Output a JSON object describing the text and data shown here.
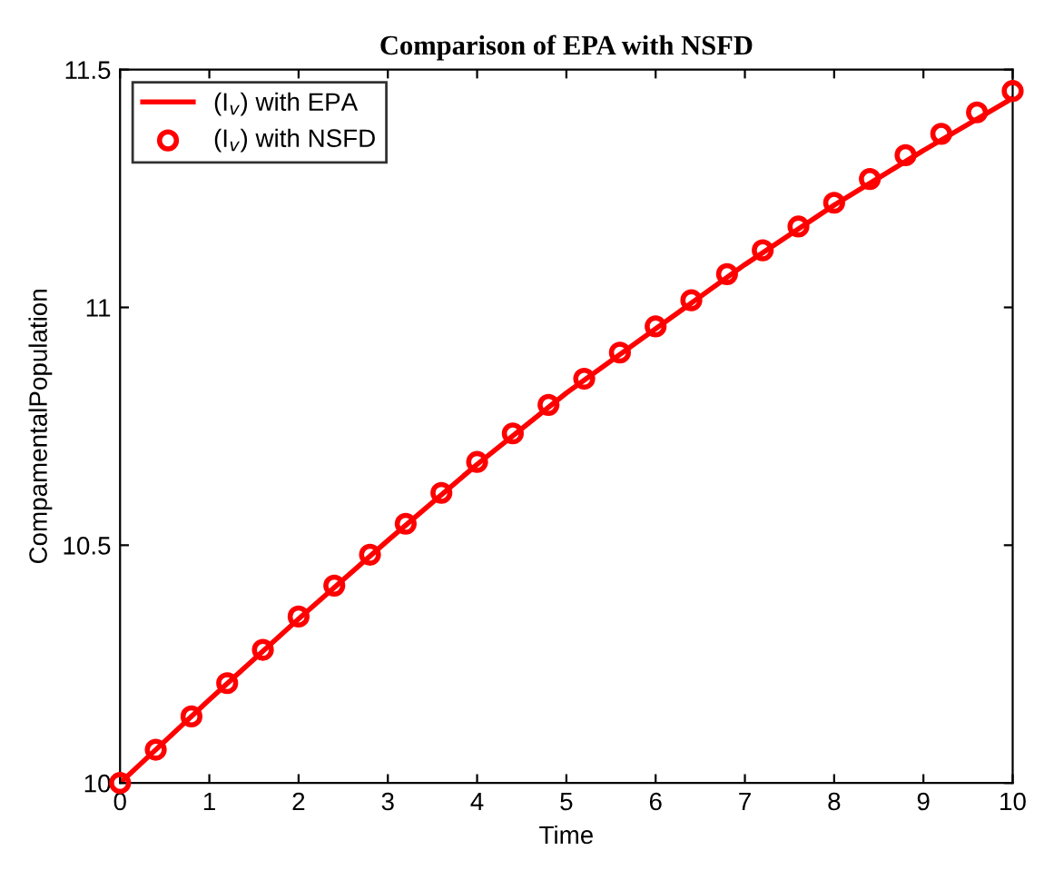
{
  "chart_data": {
    "type": "line",
    "title": "Comparison of EPA with NSFD",
    "xlabel": "Time",
    "ylabel": "CompamentalPopulation",
    "xlim": [
      0,
      10
    ],
    "xticks": [
      0,
      1,
      2,
      3,
      4,
      5,
      6,
      7,
      8,
      9,
      10
    ],
    "ylim": [
      10,
      11.5
    ],
    "yticks": [
      10,
      10.5,
      11,
      11.5
    ],
    "grid": false,
    "legend": "top left",
    "series": [
      {
        "name": "(I$_{v}$) with EPA",
        "color": "#ff0000",
        "marker": "none",
        "line_style": "solid",
        "x": [
          0,
          1,
          2,
          3,
          4,
          5,
          6,
          7,
          8,
          9,
          10
        ],
        "values": [
          10,
          10.175,
          10.345,
          10.51,
          10.67,
          10.82,
          10.955,
          11.09,
          11.215,
          11.33,
          11.44
        ]
      },
      {
        "name": "(I$_{v}$) with NSFD",
        "color": "#ff0000",
        "type": "scatter",
        "marker": "circle",
        "x": [
          0,
          0.4,
          0.8,
          1.2,
          1.6,
          2,
          2.4,
          2.8,
          3.2,
          3.6,
          4,
          4.4,
          4.8,
          5.2,
          5.6,
          6,
          6.4,
          6.8,
          7.2,
          7.6,
          8,
          8.4,
          8.8,
          9.2,
          9.6,
          10
        ],
        "values": [
          10,
          10.07,
          10.14,
          10.21,
          10.28,
          10.35,
          10.415,
          10.48,
          10.545,
          10.61,
          10.675,
          10.735,
          10.795,
          10.85,
          10.905,
          10.96,
          11.015,
          11.07,
          11.12,
          11.17,
          11.22,
          11.27,
          11.32,
          11.365,
          11.41,
          11.455
        ]
      }
    ]
  }
}
